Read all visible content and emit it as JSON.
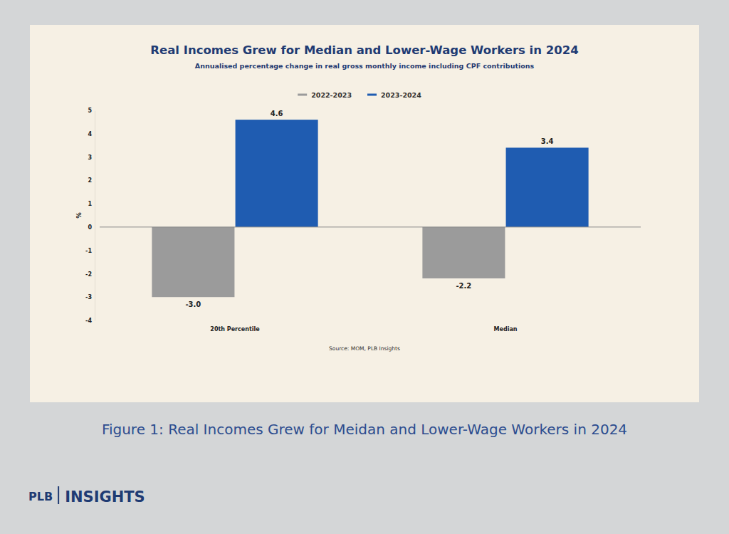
{
  "chart_data": {
    "type": "bar",
    "title": "Real Incomes Grew for Median and Lower-Wage Workers in 2024",
    "subtitle": "Annualised percentage change in real gross monthly income including CPF contributions",
    "y_label": "%",
    "categories": [
      "20th Percentile",
      "Median"
    ],
    "series": [
      {
        "name": "2022-2023",
        "color": "#9b9b9b",
        "values": [
          -3.0,
          -2.2
        ],
        "value_labels": [
          "-3.0",
          "-2.2"
        ]
      },
      {
        "name": "2023-2024",
        "color": "#1f5cb1",
        "values": [
          4.6,
          3.4
        ]
      }
    ],
    "ylim": [
      -4,
      5
    ],
    "yticks": [
      -4,
      -3,
      -2,
      -1,
      0,
      1,
      2,
      3,
      4,
      5
    ],
    "grid": false,
    "legend": "top",
    "data_labels": true,
    "source": "Source: MOM, PLB Insights"
  },
  "caption": "Figure 1: Real Incomes Grew for Meidan and Lower-Wage Workers in 2024",
  "footer": {
    "brand": "PLB",
    "section": "INSIGHTS"
  }
}
